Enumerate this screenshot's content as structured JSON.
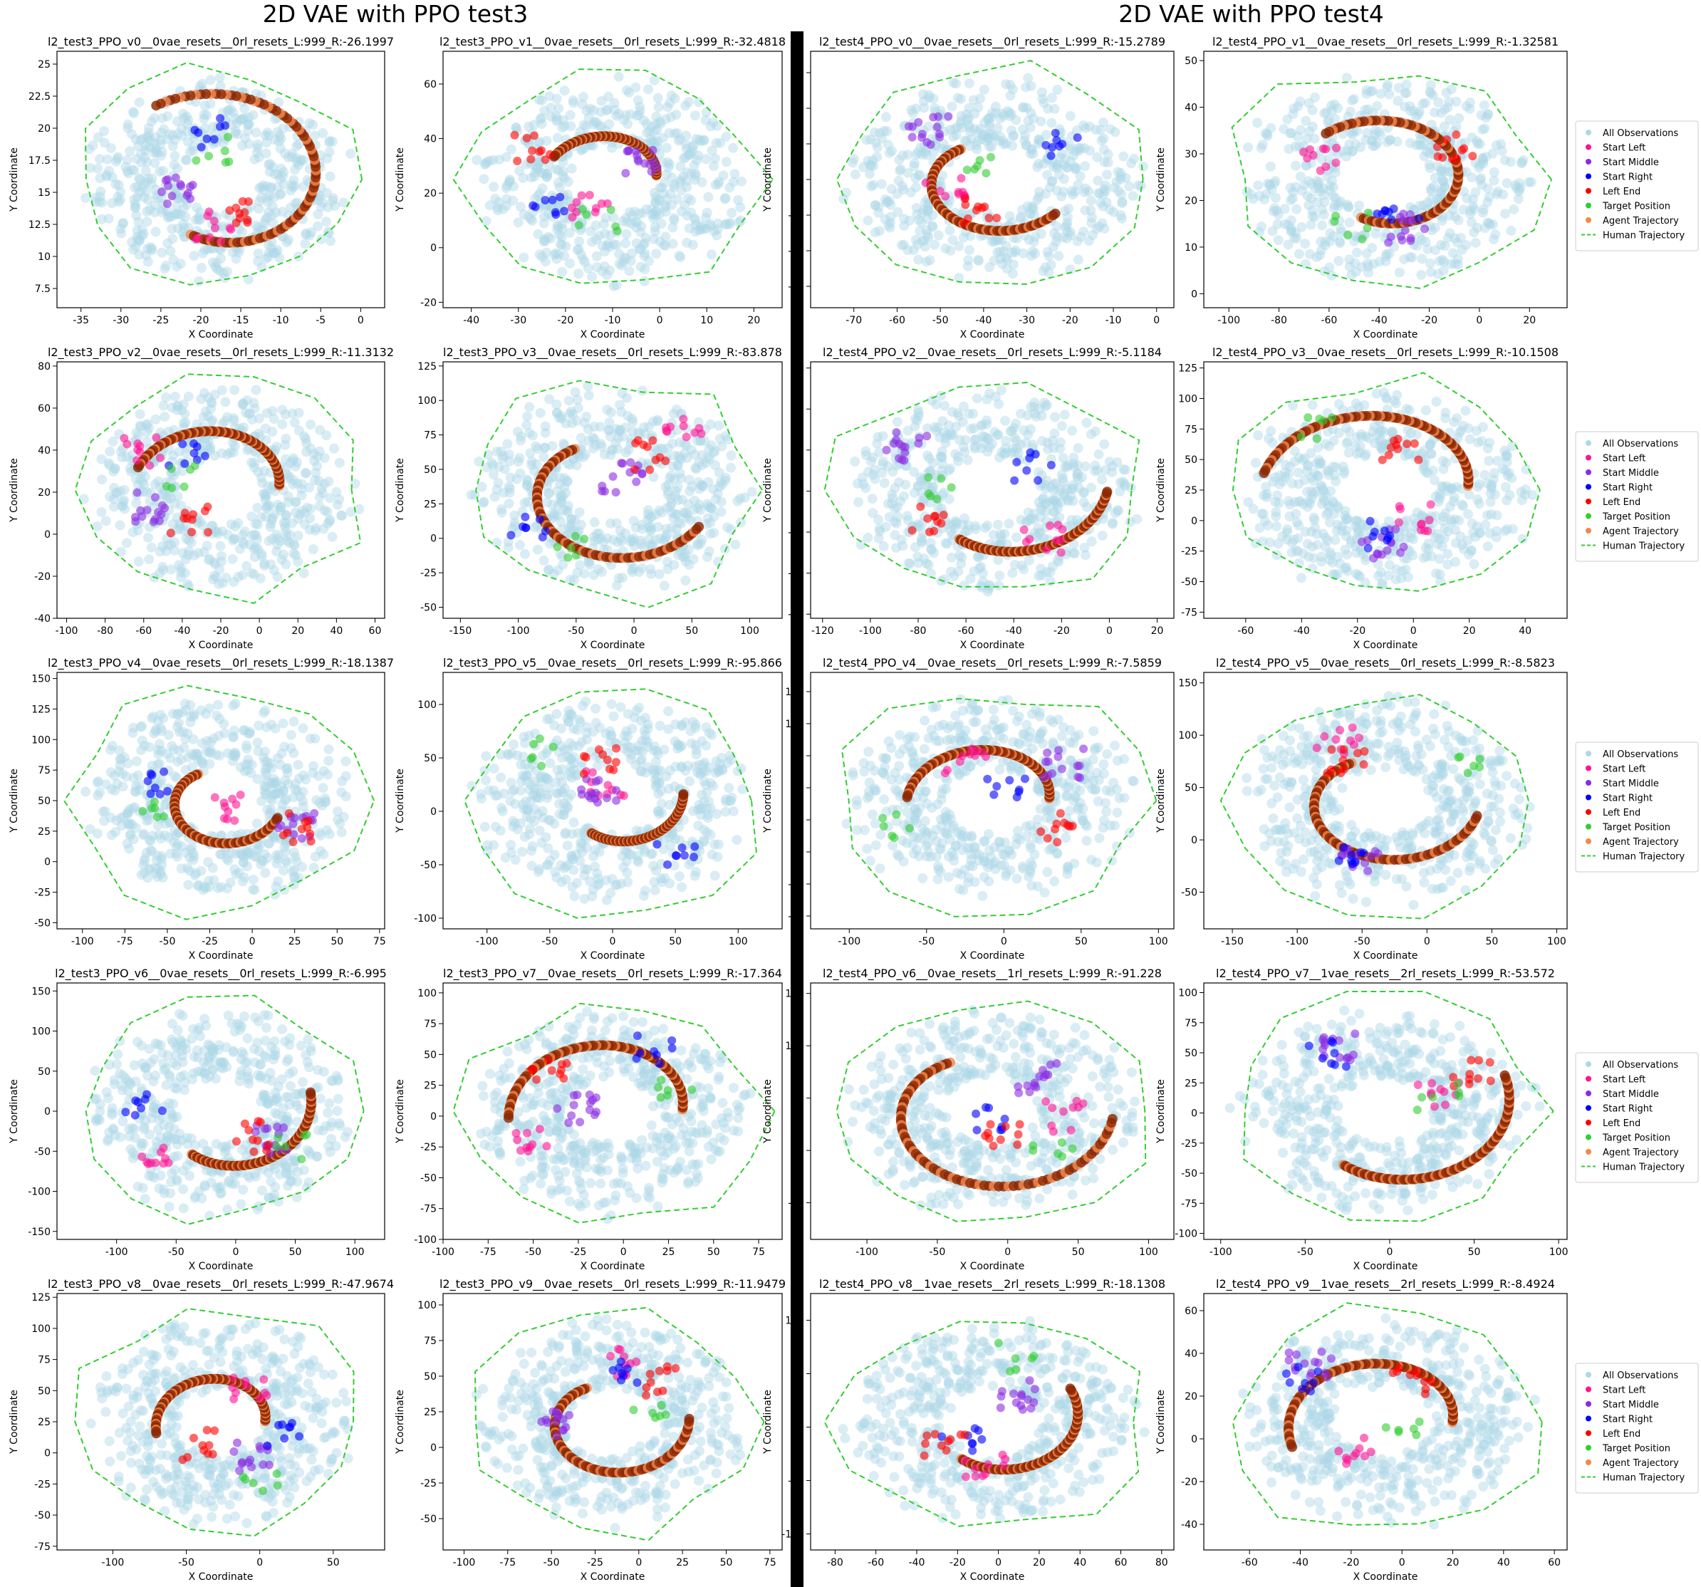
{
  "titles": {
    "left": "2D VAE with PPO test3",
    "right": "2D VAE with PPO test4"
  },
  "legend_labels": {
    "all_observations": "All Observations",
    "start_left": "Start Left",
    "start_middle": "Start Middle",
    "start_right": "Start Right",
    "left_end": "Left End",
    "target_position": "Target Position",
    "agent_trajectory": "Agent Trajectory",
    "human_trajectory": "Human Trajectory"
  },
  "colors": {
    "all_observations": "#add8e6",
    "start_left": "#ff1493",
    "start_middle": "#8a2be2",
    "start_right": "#0000ff",
    "left_end": "#ff0000",
    "target_position": "#32cd32",
    "agent_trajectory": "#f4874b",
    "agent_trajectory_dark": "#8b2500",
    "human_trajectory": "#32cd32"
  },
  "chart_data": [
    {
      "type": "scatter",
      "title": "l2_test3_PPO_v0__0vae_resets__0rl_resets_L:999_R:-26.1997",
      "xlabel": "X Coordinate",
      "ylabel": "Y Coordinate",
      "xticks": [
        -35,
        -30,
        -25,
        -20,
        -15,
        -10,
        -5,
        0
      ],
      "yticks": [
        7.5,
        10.0,
        12.5,
        15.0,
        17.5,
        20.0,
        22.5,
        25.0
      ],
      "xlim": [
        -38,
        3
      ],
      "ylim": [
        6,
        26
      ],
      "legend": false
    },
    {
      "type": "scatter",
      "title": "l2_test3_PPO_v1__0vae_resets__0rl_resets_L:999_R:-32.4818",
      "xlabel": "X Coordinate",
      "ylabel": "Y Coordinate",
      "xticks": [
        -40,
        -30,
        -20,
        -10,
        0,
        10,
        20
      ],
      "yticks": [
        -20,
        0,
        20,
        40,
        60
      ],
      "xlim": [
        -46,
        26
      ],
      "ylim": [
        -22,
        72
      ],
      "legend": false
    },
    {
      "type": "scatter",
      "title": "l2_test4_PPO_v0__0vae_resets__0rl_resets_L:999_R:-15.2789",
      "xlabel": "X Coordinate",
      "ylabel": "Y Coordinate",
      "xticks": [
        -70,
        -60,
        -50,
        -40,
        -30,
        -20,
        -10,
        0
      ],
      "yticks": [
        -20,
        -15,
        -10,
        -5,
        0,
        5,
        10
      ],
      "xlim": [
        -80,
        4
      ],
      "ylim": [
        -23,
        13
      ],
      "legend": false
    },
    {
      "type": "scatter",
      "title": "l2_test4_PPO_v1__0vae_resets__0rl_resets_L:999_R:-1.32581",
      "xlabel": "X Coordinate",
      "ylabel": "Y Coordinate",
      "xticks": [
        -100,
        -80,
        -60,
        -40,
        -20,
        0,
        20
      ],
      "yticks": [
        0,
        10,
        20,
        30,
        40,
        50
      ],
      "xlim": [
        -110,
        35
      ],
      "ylim": [
        -3,
        52
      ],
      "legend": true
    },
    {
      "type": "scatter",
      "title": "l2_test3_PPO_v2__0vae_resets__0rl_resets_L:999_R:-11.3132",
      "xlabel": "X Coordinate",
      "ylabel": "Y Coordinate",
      "xticks": [
        -100,
        -80,
        -60,
        -40,
        -20,
        0,
        20,
        40,
        60
      ],
      "yticks": [
        -40,
        -20,
        0,
        20,
        40,
        60,
        80
      ],
      "xlim": [
        -105,
        65
      ],
      "ylim": [
        -40,
        82
      ],
      "legend": false
    },
    {
      "type": "scatter",
      "title": "l2_test3_PPO_v3__0vae_resets__0rl_resets_L:999_R:-83.878",
      "xlabel": "X Coordinate",
      "ylabel": "Y Coordinate",
      "xticks": [
        -150,
        -100,
        -50,
        0,
        50,
        100
      ],
      "yticks": [
        -50,
        -25,
        0,
        25,
        50,
        75,
        100,
        125
      ],
      "xlim": [
        -165,
        128
      ],
      "ylim": [
        -58,
        128
      ],
      "legend": false
    },
    {
      "type": "scatter",
      "title": "l2_test4_PPO_v2__0vae_resets__0rl_resets_L:999_R:-5.1184",
      "xlabel": "X Coordinate",
      "ylabel": "Y Coordinate",
      "xticks": [
        -120,
        -100,
        -80,
        -60,
        -40,
        -20,
        0,
        20
      ],
      "yticks": [
        -60,
        -40,
        -20,
        0,
        20,
        40,
        60
      ],
      "xlim": [
        -125,
        27
      ],
      "ylim": [
        -62,
        63
      ],
      "legend": false
    },
    {
      "type": "scatter",
      "title": "l2_test4_PPO_v3__0vae_resets__0rl_resets_L:999_R:-10.1508",
      "xlabel": "X Coordinate",
      "ylabel": "Y Coordinate",
      "xticks": [
        -60,
        -40,
        -20,
        0,
        20,
        40
      ],
      "yticks": [
        -75,
        -50,
        -25,
        0,
        25,
        50,
        75,
        100,
        125
      ],
      "xlim": [
        -75,
        55
      ],
      "ylim": [
        -80,
        130
      ],
      "legend": true
    },
    {
      "type": "scatter",
      "title": "l2_test3_PPO_v4__0vae_resets__0rl_resets_L:999_R:-18.1387",
      "xlabel": "X Coordinate",
      "ylabel": "Y Coordinate",
      "xticks": [
        -100,
        -75,
        -50,
        -25,
        0,
        25,
        50,
        75
      ],
      "yticks": [
        -50,
        -25,
        0,
        25,
        50,
        75,
        100,
        125,
        150
      ],
      "xlim": [
        -115,
        78
      ],
      "ylim": [
        -55,
        155
      ],
      "legend": false
    },
    {
      "type": "scatter",
      "title": "l2_test3_PPO_v5__0vae_resets__0rl_resets_L:999_R:-95.866",
      "xlabel": "X Coordinate",
      "ylabel": "Y Coordinate",
      "xticks": [
        -100,
        -50,
        0,
        50,
        100
      ],
      "yticks": [
        -100,
        -50,
        0,
        50,
        100
      ],
      "xlim": [
        -135,
        135
      ],
      "ylim": [
        -110,
        130
      ],
      "legend": false
    },
    {
      "type": "scatter",
      "title": "l2_test4_PPO_v4__0vae_resets__0rl_resets_L:999_R:-7.5859",
      "xlabel": "X Coordinate",
      "ylabel": "Y Coordinate",
      "xticks": [
        -100,
        -50,
        0,
        50,
        100
      ],
      "yticks": [
        -50,
        -25,
        0,
        25,
        50,
        75,
        100,
        125
      ],
      "xlim": [
        -125,
        110
      ],
      "ylim": [
        -60,
        140
      ],
      "legend": false
    },
    {
      "type": "scatter",
      "title": "l2_test4_PPO_v5__0vae_resets__0rl_resets_L:999_R:-8.5823",
      "xlabel": "X Coordinate",
      "ylabel": "Y Coordinate",
      "xticks": [
        -150,
        -100,
        -50,
        0,
        50,
        100
      ],
      "yticks": [
        -50,
        0,
        50,
        100,
        150
      ],
      "xlim": [
        -172,
        108
      ],
      "ylim": [
        -85,
        160
      ],
      "legend": true
    },
    {
      "type": "scatter",
      "title": "l2_test3_PPO_v6__0vae_resets__0rl_resets_L:999_R:-6.995",
      "xlabel": "X Coordinate",
      "ylabel": "Y Coordinate",
      "xticks": [
        -100,
        -50,
        0,
        50,
        100
      ],
      "yticks": [
        -150,
        -100,
        -50,
        0,
        50,
        100,
        150
      ],
      "xlim": [
        -150,
        125
      ],
      "ylim": [
        -160,
        160
      ],
      "legend": false
    },
    {
      "type": "scatter",
      "title": "l2_test3_PPO_v7__0vae_resets__0rl_resets_L:999_R:-17.364",
      "xlabel": "X Coordinate",
      "ylabel": "Y Coordinate",
      "xticks": [
        -100,
        -75,
        -50,
        -25,
        0,
        25,
        50,
        75
      ],
      "yticks": [
        -100,
        -75,
        -50,
        -25,
        0,
        25,
        50,
        75,
        100
      ],
      "xlim": [
        -100,
        88
      ],
      "ylim": [
        -100,
        108
      ],
      "legend": false
    },
    {
      "type": "scatter",
      "title": "l2_test4_PPO_v6__0vae_resets__1rl_resets_L:999_R:-91.228",
      "xlabel": "X Coordinate",
      "ylabel": "Y Coordinate",
      "xticks": [
        -100,
        -50,
        0,
        50,
        100
      ],
      "yticks": [
        -50,
        0,
        50,
        100,
        150
      ],
      "xlim": [
        -140,
        118
      ],
      "ylim": [
        -85,
        160
      ],
      "legend": false
    },
    {
      "type": "scatter",
      "title": "l2_test4_PPO_v7__1vae_resets__2rl_resets_L:999_R:-53.572",
      "xlabel": "X Coordinate",
      "ylabel": "Y Coordinate",
      "xticks": [
        -100,
        -50,
        0,
        50,
        100
      ],
      "yticks": [
        -100,
        -75,
        -50,
        -25,
        0,
        25,
        50,
        75,
        100
      ],
      "xlim": [
        -110,
        105
      ],
      "ylim": [
        -105,
        108
      ],
      "legend": true
    },
    {
      "type": "scatter",
      "title": "l2_test3_PPO_v8__0vae_resets__0rl_resets_L:999_R:-47.9674",
      "xlabel": "X Coordinate",
      "ylabel": "Y Coordinate",
      "xticks": [
        -100,
        -50,
        0,
        50
      ],
      "yticks": [
        -75,
        -50,
        -25,
        0,
        25,
        50,
        75,
        100,
        125
      ],
      "xlim": [
        -138,
        85
      ],
      "ylim": [
        -78,
        128
      ],
      "legend": false
    },
    {
      "type": "scatter",
      "title": "l2_test3_PPO_v9__0vae_resets__0rl_resets_L:999_R:-11.9479",
      "xlabel": "X Coordinate",
      "ylabel": "Y Coordinate",
      "xticks": [
        -100,
        -75,
        -50,
        -25,
        0,
        25,
        50,
        75
      ],
      "yticks": [
        -50,
        -25,
        0,
        25,
        50,
        75,
        100
      ],
      "xlim": [
        -112,
        82
      ],
      "ylim": [
        -72,
        108
      ],
      "legend": false
    },
    {
      "type": "scatter",
      "title": "l2_test4_PPO_v8__1vae_resets__2rl_resets_L:999_R:-18.1308",
      "xlabel": "X Coordinate",
      "ylabel": "Y Coordinate",
      "xticks": [
        -80,
        -60,
        -40,
        -20,
        0,
        20,
        40,
        60,
        80
      ],
      "yticks": [
        -100,
        -50,
        0,
        50,
        100
      ],
      "xlim": [
        -92,
        86
      ],
      "ylim": [
        -115,
        125
      ],
      "legend": false
    },
    {
      "type": "scatter",
      "title": "l2_test4_PPO_v9__1vae_resets__2rl_resets_L:999_R:-8.4924",
      "xlabel": "X Coordinate",
      "ylabel": "Y Coordinate",
      "xticks": [
        -60,
        -40,
        -20,
        0,
        20,
        40,
        60
      ],
      "yticks": [
        -40,
        -20,
        0,
        20,
        40,
        60
      ],
      "xlim": [
        -78,
        65
      ],
      "ylim": [
        -52,
        68
      ],
      "legend": true
    }
  ]
}
